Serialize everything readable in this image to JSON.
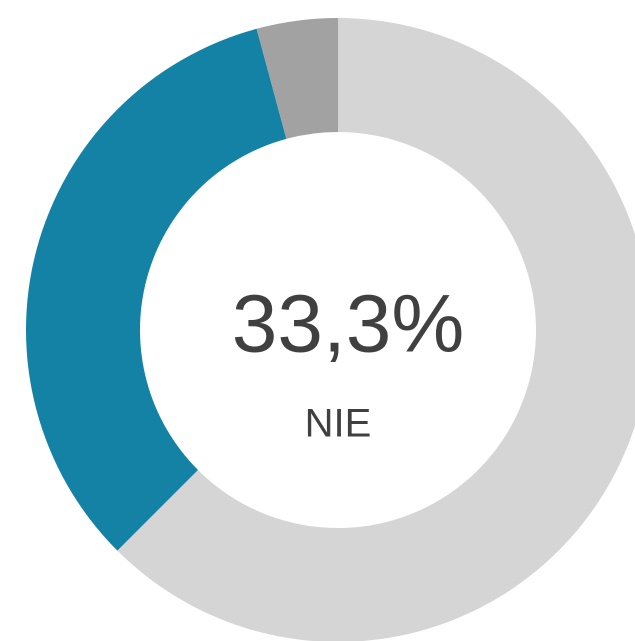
{
  "chart_data": {
    "type": "donut",
    "categories": [
      null,
      "NIE",
      null
    ],
    "values": [
      62.5,
      33.3,
      4.2
    ],
    "value_labels": [
      null,
      "33,3%",
      null
    ],
    "colors": [
      "#d5d5d5",
      "#1482a4",
      "#a2a2a2"
    ]
  }
}
